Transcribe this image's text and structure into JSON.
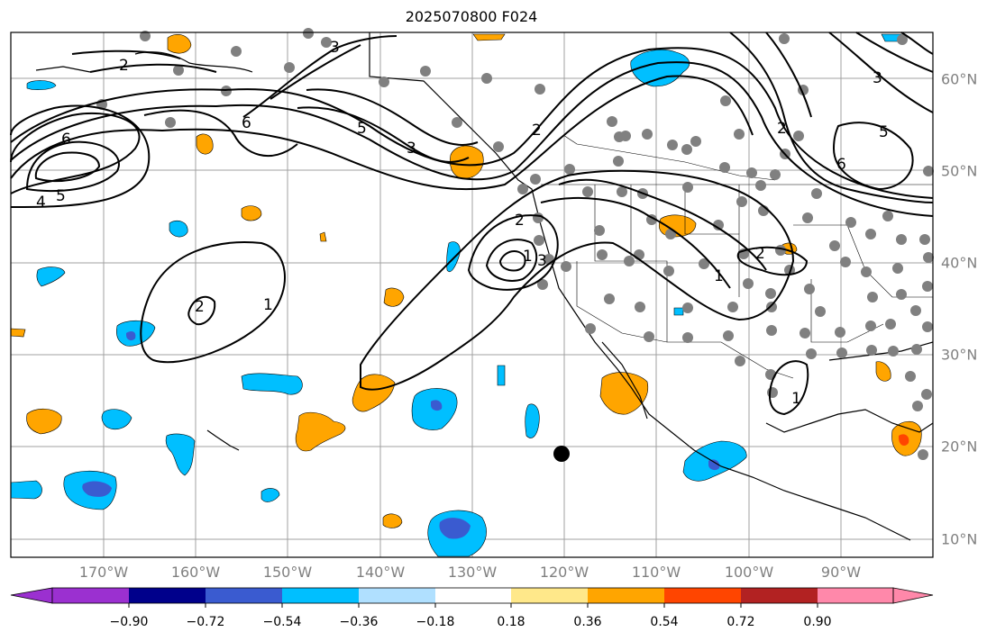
{
  "title": "2025070800 F024",
  "lon_labels": [
    "170°W",
    "160°W",
    "150°W",
    "140°W",
    "130°W",
    "120°W",
    "110°W",
    "100°W",
    "90°W"
  ],
  "lat_labels": [
    "60°N",
    "50°N",
    "40°N",
    "30°N",
    "20°N",
    "10°N"
  ],
  "colorbar": {
    "ticks": [
      "−0.90",
      "−0.72",
      "−0.54",
      "−0.36",
      "−0.18",
      "0.18",
      "0.36",
      "0.54",
      "0.72",
      "0.90"
    ],
    "colors": [
      "#9b30d0",
      "#00008b",
      "#3a5bd0",
      "#00bfff",
      "#b0e0ff",
      "#ffffff",
      "#ffe88a",
      "#ffa500",
      "#ff4500",
      "#b22222",
      "#ff88aa"
    ]
  },
  "contour_labels": [
    "2",
    "3",
    "6",
    "5",
    "4",
    "5",
    "6",
    "3",
    "2",
    "1",
    "2",
    "3",
    "1",
    "2",
    "1",
    "1",
    "6",
    "5",
    "2",
    "3",
    "2"
  ],
  "marker": "filled-circle"
}
